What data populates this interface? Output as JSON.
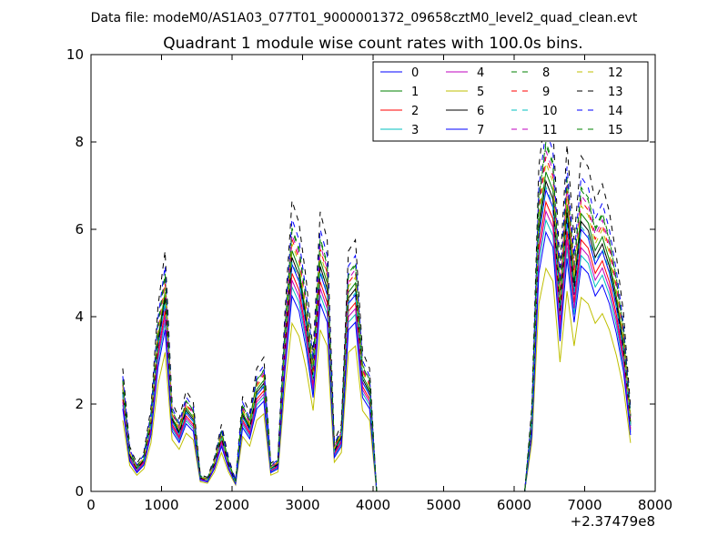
{
  "header": {
    "suptitle": "Data file: modeM0/AS1A03_077T01_9000001372_09658cztM0_level2_quad_clean.evt",
    "title": "Quadrant 1 module wise count rates with 100.0s bins."
  },
  "chart_data": {
    "type": "line",
    "title": "Quadrant 1 module wise count rates with 100.0s bins.",
    "xlabel": "",
    "ylabel": "",
    "x_offset_label": "+2.37479e8",
    "xlim": [
      0,
      8000
    ],
    "ylim": [
      0,
      10
    ],
    "xticks": [
      "0",
      "1000",
      "2000",
      "3000",
      "4000",
      "5000",
      "6000",
      "7000",
      "8000"
    ],
    "yticks": [
      "0",
      "2",
      "4",
      "6",
      "8",
      "10"
    ],
    "grid": false,
    "legend_position": "top-right",
    "x": [
      450,
      550,
      650,
      750,
      850,
      950,
      1050,
      1150,
      1250,
      1350,
      1450,
      1550,
      1650,
      1750,
      1850,
      1950,
      2050,
      2150,
      2250,
      2350,
      2450,
      2550,
      2650,
      2750,
      2850,
      2950,
      3050,
      3150,
      3250,
      3350,
      3450,
      3550,
      3650,
      3750,
      3850,
      3950,
      4050,
      4150,
      4250,
      4350,
      4450,
      4550,
      4650,
      4750,
      4850,
      4950,
      5050,
      5150,
      5250,
      5350,
      5450,
      5550,
      5650,
      5750,
      5850,
      5950,
      6050,
      6150,
      6250,
      6350,
      6450,
      6550,
      6650,
      6750,
      6850,
      6950,
      7050,
      7150,
      7250,
      7350,
      7450,
      7550,
      7650
    ],
    "base": [
      2.2,
      0.8,
      0.5,
      0.7,
      1.5,
      3.3,
      4.3,
      1.6,
      1.3,
      1.8,
      1.6,
      0.3,
      0.25,
      0.6,
      1.2,
      0.6,
      0.2,
      1.7,
      1.4,
      2.2,
      2.4,
      0.5,
      0.6,
      3.2,
      5.2,
      4.8,
      3.8,
      2.5,
      5.0,
      4.5,
      0.9,
      1.2,
      4.3,
      4.5,
      2.5,
      2.2,
      0,
      0,
      0,
      0,
      0,
      0,
      0,
      0,
      0,
      0,
      0,
      0,
      0,
      0,
      0,
      0,
      0,
      0,
      0,
      0,
      0,
      0,
      1.5,
      5.8,
      6.9,
      6.5,
      4.0,
      6.2,
      4.5,
      6.0,
      5.8,
      5.2,
      5.5,
      5.0,
      4.2,
      3.2,
      1.5
    ],
    "series": [
      {
        "name": "0",
        "color": "#0000ff",
        "dash": "solid",
        "scale": 1.0
      },
      {
        "name": "1",
        "color": "#008000",
        "dash": "solid",
        "scale": 1.06
      },
      {
        "name": "2",
        "color": "#ff0000",
        "dash": "solid",
        "scale": 0.96
      },
      {
        "name": "3",
        "color": "#00bfbf",
        "dash": "solid",
        "scale": 0.9
      },
      {
        "name": "4",
        "color": "#bf00bf",
        "dash": "solid",
        "scale": 0.93
      },
      {
        "name": "5",
        "color": "#bfbf00",
        "dash": "solid",
        "scale": 0.74
      },
      {
        "name": "6",
        "color": "#000000",
        "dash": "solid",
        "scale": 1.03
      },
      {
        "name": "7",
        "color": "#0000ff",
        "dash": "solid",
        "scale": 0.86
      },
      {
        "name": "8",
        "color": "#008000",
        "dash": "dashed",
        "scale": 1.16
      },
      {
        "name": "9",
        "color": "#ff0000",
        "dash": "dashed",
        "scale": 1.11
      },
      {
        "name": "10",
        "color": "#00bfbf",
        "dash": "dashed",
        "scale": 1.01
      },
      {
        "name": "11",
        "color": "#bf00bf",
        "dash": "dashed",
        "scale": 1.13
      },
      {
        "name": "12",
        "color": "#bfbf00",
        "dash": "dashed",
        "scale": 1.09
      },
      {
        "name": "13",
        "color": "#000000",
        "dash": "dashed",
        "scale": 1.28
      },
      {
        "name": "14",
        "color": "#0000ff",
        "dash": "dashed",
        "scale": 1.2
      },
      {
        "name": "15",
        "color": "#008000",
        "dash": "dashed",
        "scale": 1.15
      }
    ]
  }
}
